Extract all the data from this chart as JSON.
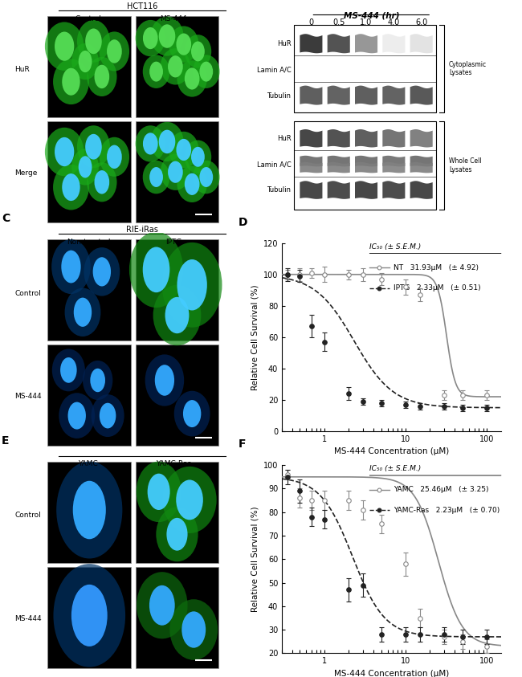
{
  "figure_bg": "#ffffff",
  "font_size": 7,
  "panel_D": {
    "label": "D",
    "xlabel": "MS-444 Concentration (μM)",
    "ylabel": "Relative Cell Survival (%)",
    "ylim": [
      0,
      120
    ],
    "yticks": [
      0,
      20,
      40,
      60,
      80,
      100,
      120
    ],
    "xlim": [
      0.3,
      150
    ],
    "xticks": [
      1,
      10,
      100
    ],
    "xtick_labels": [
      "1",
      "10",
      "100"
    ],
    "NT_label": "NT",
    "NT_ic50": "31.93μM",
    "NT_sem": "(± 4.92)",
    "IPTG_label": "IPTG",
    "IPTG_ic50": "2.33μM",
    "IPTG_sem": "(± 0.51)",
    "legend_title": "IC₅₀ (± S.E.M.)",
    "NT_x": [
      0.35,
      0.5,
      0.7,
      1.0,
      2.0,
      3.0,
      5.0,
      10.0,
      15.0,
      30.0,
      50.0,
      100.0
    ],
    "NT_y": [
      100,
      100,
      101,
      100,
      100,
      100,
      97,
      92,
      87,
      23,
      23,
      23
    ],
    "NT_yerr": [
      3,
      4,
      3,
      5,
      3,
      4,
      4,
      5,
      4,
      3,
      3,
      3
    ],
    "IPTG_x": [
      0.35,
      0.5,
      0.7,
      1.0,
      2.0,
      3.0,
      5.0,
      10.0,
      15.0,
      30.0,
      50.0,
      100.0
    ],
    "IPTG_y": [
      100,
      99,
      67,
      57,
      24,
      19,
      18,
      17,
      16,
      16,
      15,
      15
    ],
    "IPTG_yerr": [
      4,
      4,
      7,
      6,
      4,
      2,
      2,
      2,
      2,
      2,
      2,
      2
    ],
    "NT_color": "#888888",
    "IPTG_color": "#222222"
  },
  "panel_F": {
    "label": "F",
    "xlabel": "MS-444 Concentration (μM)",
    "ylabel": "Relative Cell Survival (%)",
    "ylim": [
      20,
      100
    ],
    "yticks": [
      20,
      30,
      40,
      50,
      60,
      70,
      80,
      90,
      100
    ],
    "xlim": [
      0.3,
      150
    ],
    "xticks": [
      1,
      10,
      100
    ],
    "xtick_labels": [
      "1",
      "10",
      "100"
    ],
    "YAMC_label": "YAMC",
    "YAMC_ic50": "25.46μM",
    "YAMC_sem": "(± 3.25)",
    "YAMCRas_label": "YAMC-Ras",
    "YAMCRas_ic50": "2.23μM",
    "YAMCRas_sem": "(± 0.70)",
    "legend_title": "IC₅₀ (± S.E.M.)",
    "YAMC_x": [
      0.35,
      0.5,
      0.7,
      1.0,
      2.0,
      3.0,
      5.0,
      10.0,
      15.0,
      30.0,
      50.0,
      100.0
    ],
    "YAMC_y": [
      96,
      86,
      85,
      85,
      85,
      81,
      75,
      58,
      35,
      27,
      25,
      23
    ],
    "YAMC_yerr": [
      2,
      4,
      4,
      4,
      4,
      4,
      4,
      5,
      4,
      3,
      3,
      3
    ],
    "YAMCRas_x": [
      0.35,
      0.5,
      0.7,
      1.0,
      2.0,
      3.0,
      5.0,
      10.0,
      15.0,
      30.0,
      50.0,
      100.0
    ],
    "YAMCRas_y": [
      95,
      89,
      78,
      77,
      47,
      49,
      28,
      28,
      28,
      28,
      27,
      27
    ],
    "YAMCRas_yerr": [
      3,
      5,
      4,
      4,
      5,
      5,
      3,
      3,
      3,
      3,
      3,
      3
    ],
    "YAMC_color": "#888888",
    "YAMCRas_color": "#222222"
  }
}
